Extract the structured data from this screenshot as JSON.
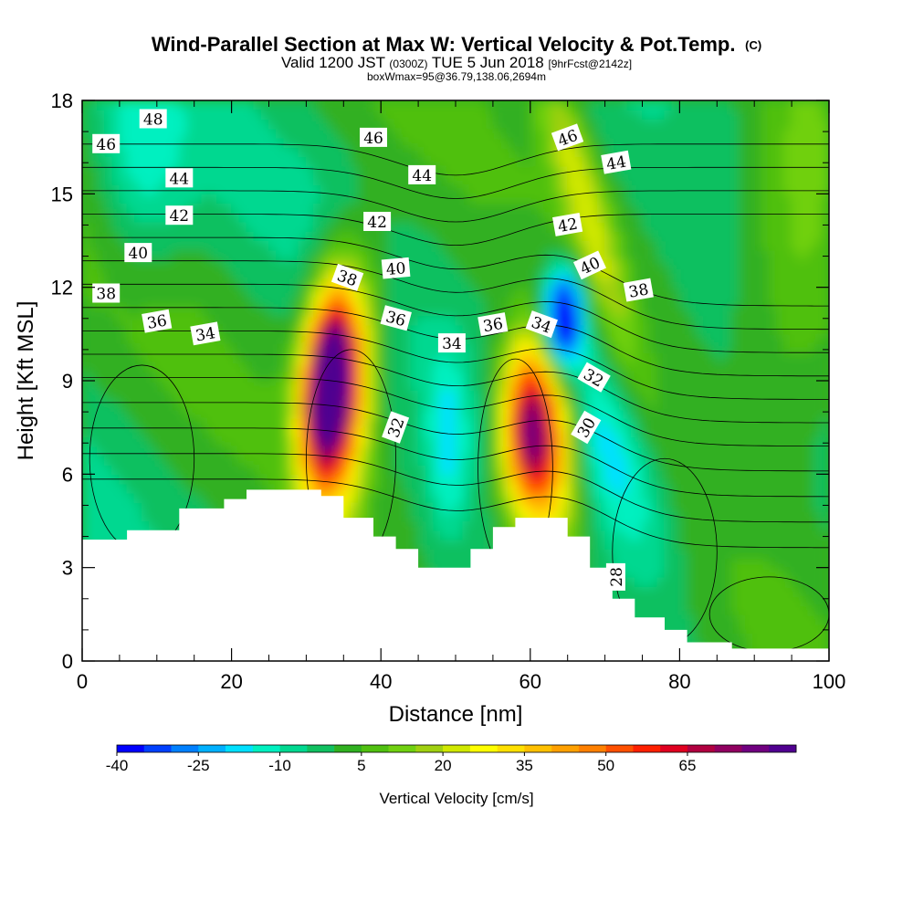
{
  "chart_data": {
    "type": "heatmap",
    "title": "Wind-Parallel Section at Max W: Vertical Velocity & Pot.Temp.",
    "title_mark": "(C)",
    "subtitle_prefix": "Valid 1200 JST",
    "subtitle_z": "(0300Z)",
    "subtitle_date": "TUE 5 Jun 2018",
    "subtitle_fcst": "[9hrFcst@2142z]",
    "subtitle2": "boxWmax=95@36.79,138.06,2694m",
    "xlabel": "Distance [nm]",
    "ylabel": "Height [Kft MSL]",
    "xlim": [
      0,
      100
    ],
    "ylim": [
      0,
      18
    ],
    "x_ticks": [
      "0",
      "20",
      "40",
      "60",
      "80",
      "100"
    ],
    "y_ticks": [
      "0",
      "3",
      "6",
      "9",
      "12",
      "15",
      "18"
    ],
    "colorbar": {
      "label": "Vertical Velocity [cm/s]",
      "min": -40,
      "step": 5,
      "tick_labels": [
        "-40",
        "-25",
        "-10",
        "5",
        "20",
        "35",
        "50",
        "65"
      ],
      "colors": [
        "#0000ff",
        "#0040ff",
        "#0080ff",
        "#00b0ff",
        "#00e0ff",
        "#00f0c0",
        "#00d890",
        "#10c060",
        "#30b020",
        "#50c010",
        "#70d010",
        "#a0d010",
        "#d0e800",
        "#ffff00",
        "#ffe000",
        "#ffc000",
        "#ffa000",
        "#ff8000",
        "#ff5000",
        "#ff2000",
        "#e00020",
        "#b00040",
        "#900060",
        "#700080",
        "#500090"
      ]
    },
    "updraft_cores": [
      {
        "x": 33,
        "z": 9.0,
        "w": 95
      },
      {
        "x": 60,
        "z": 7.5,
        "w": 70
      }
    ],
    "downdraft_cores": [
      {
        "x": 64.5,
        "z": 11.0,
        "w": -35
      }
    ],
    "terrain": [
      [
        0,
        3.9
      ],
      [
        6,
        3.9
      ],
      [
        6,
        4.2
      ],
      [
        13,
        4.2
      ],
      [
        13,
        4.9
      ],
      [
        19,
        4.9
      ],
      [
        19,
        5.2
      ],
      [
        22,
        5.2
      ],
      [
        22,
        5.5
      ],
      [
        32,
        5.5
      ],
      [
        32,
        5.3
      ],
      [
        35,
        5.3
      ],
      [
        35,
        4.6
      ],
      [
        39,
        4.6
      ],
      [
        39,
        4.0
      ],
      [
        42,
        4.0
      ],
      [
        42,
        3.6
      ],
      [
        45,
        3.6
      ],
      [
        45,
        3.0
      ],
      [
        52,
        3.0
      ],
      [
        52,
        3.6
      ],
      [
        55,
        3.6
      ],
      [
        55,
        4.3
      ],
      [
        58,
        4.3
      ],
      [
        58,
        4.6
      ],
      [
        65,
        4.6
      ],
      [
        65,
        4.0
      ],
      [
        68,
        4.0
      ],
      [
        68,
        3.0
      ],
      [
        71,
        3.0
      ],
      [
        71,
        2.0
      ],
      [
        74,
        2.0
      ],
      [
        74,
        1.4
      ],
      [
        78,
        1.4
      ],
      [
        78,
        1.0
      ],
      [
        81,
        1.0
      ],
      [
        81,
        0.6
      ],
      [
        87,
        0.6
      ],
      [
        87,
        0.4
      ],
      [
        100,
        0.4
      ]
    ],
    "pot_temp_labels": [
      {
        "text": "48",
        "x": 9.5,
        "z": 17.4,
        "angle": 0
      },
      {
        "text": "46",
        "x": 3.2,
        "z": 16.6,
        "angle": 0
      },
      {
        "text": "46",
        "x": 39,
        "z": 16.8,
        "angle": 0
      },
      {
        "text": "46",
        "x": 65,
        "z": 16.8,
        "angle": -20
      },
      {
        "text": "44",
        "x": 13,
        "z": 15.5,
        "angle": 0
      },
      {
        "text": "44",
        "x": 45.5,
        "z": 15.6,
        "angle": 0
      },
      {
        "text": "44",
        "x": 71.5,
        "z": 16.0,
        "angle": -10
      },
      {
        "text": "42",
        "x": 13,
        "z": 14.3,
        "angle": 0
      },
      {
        "text": "42",
        "x": 39.5,
        "z": 14.1,
        "angle": 0
      },
      {
        "text": "42",
        "x": 65,
        "z": 14.0,
        "angle": -10
      },
      {
        "text": "40",
        "x": 7.5,
        "z": 13.1,
        "angle": 0
      },
      {
        "text": "40",
        "x": 42,
        "z": 12.6,
        "angle": -5
      },
      {
        "text": "40",
        "x": 68,
        "z": 12.7,
        "angle": -25
      },
      {
        "text": "38",
        "x": 3.2,
        "z": 11.8,
        "angle": 0
      },
      {
        "text": "38",
        "x": 35.5,
        "z": 12.3,
        "angle": 20
      },
      {
        "text": "38",
        "x": 74.5,
        "z": 11.9,
        "angle": -10
      },
      {
        "text": "36",
        "x": 10,
        "z": 10.9,
        "angle": -10
      },
      {
        "text": "36",
        "x": 42,
        "z": 11.0,
        "angle": 15
      },
      {
        "text": "36",
        "x": 55,
        "z": 10.8,
        "angle": -10
      },
      {
        "text": "34",
        "x": 16.5,
        "z": 10.5,
        "angle": -10
      },
      {
        "text": "34",
        "x": 49.5,
        "z": 10.2,
        "angle": 0
      },
      {
        "text": "34",
        "x": 61.5,
        "z": 10.8,
        "angle": 20
      },
      {
        "text": "32",
        "x": 42,
        "z": 7.5,
        "angle": -70
      },
      {
        "text": "32",
        "x": 68.5,
        "z": 9.1,
        "angle": 30
      },
      {
        "text": "30",
        "x": 67.5,
        "z": 7.5,
        "angle": -60
      },
      {
        "text": "28",
        "x": 71.5,
        "z": 2.7,
        "angle": -90
      }
    ]
  }
}
